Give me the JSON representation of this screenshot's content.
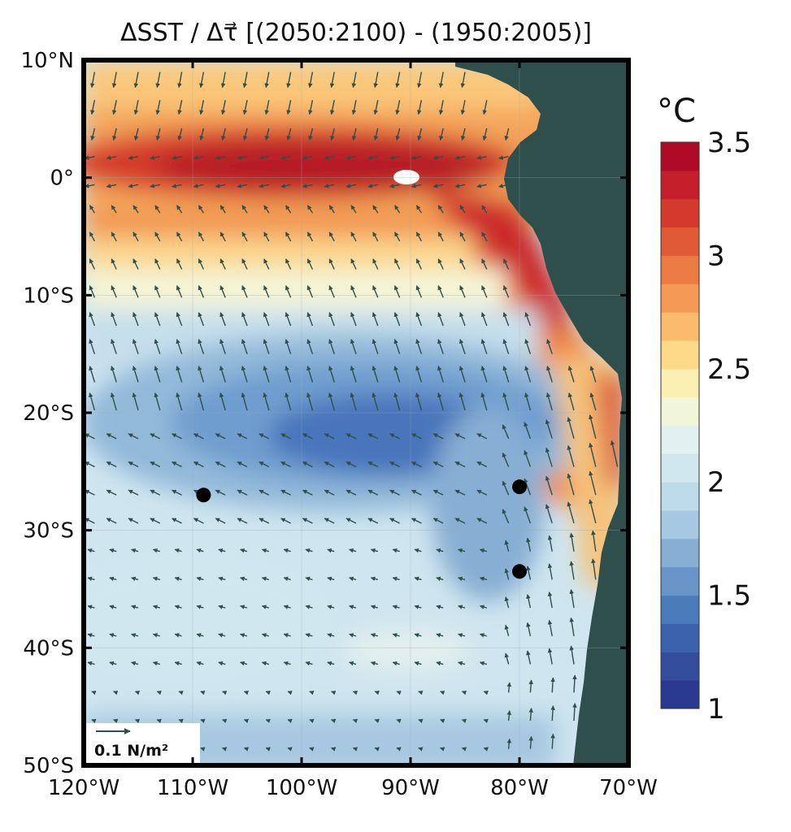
{
  "title": "ΔSST / Δτ⃗   [(2050:2100) - (1950:2005)]",
  "map": {
    "lon_range": [
      -120,
      -70
    ],
    "lat_range": [
      -50,
      10
    ],
    "x_ticks": [
      {
        "lon": -120,
        "label": "120°W"
      },
      {
        "lon": -110,
        "label": "110°W"
      },
      {
        "lon": -100,
        "label": "100°W"
      },
      {
        "lon": -90,
        "label": "90°W"
      },
      {
        "lon": -80,
        "label": "80°W"
      },
      {
        "lon": -70,
        "label": "70°W"
      }
    ],
    "y_ticks": [
      {
        "lat": 10,
        "label": "10°N"
      },
      {
        "lat": 0,
        "label": "0°"
      },
      {
        "lat": -10,
        "label": "10°S"
      },
      {
        "lat": -20,
        "label": "20°S"
      },
      {
        "lat": -30,
        "label": "30°S"
      },
      {
        "lat": -40,
        "label": "40°S"
      },
      {
        "lat": -50,
        "label": "50°S"
      }
    ],
    "land_color": "#2f4f4c",
    "arrow_color": "#2f4f4c",
    "grid": true,
    "markers": [
      {
        "lon": -109,
        "lat": -27
      },
      {
        "lon": -80,
        "lat": -26.3
      },
      {
        "lon": -80,
        "lat": -33.5
      }
    ],
    "reference_vector": {
      "label": "0.1 N/m²",
      "position": "bottom-left"
    }
  },
  "colorbar": {
    "unit": "°C",
    "range": [
      1,
      3.5
    ],
    "ticks": [
      {
        "value": 3.5,
        "label": "3.5"
      },
      {
        "value": 3,
        "label": "3"
      },
      {
        "value": 2.5,
        "label": "2.5"
      },
      {
        "value": 2,
        "label": "2"
      },
      {
        "value": 1.5,
        "label": "1.5"
      },
      {
        "value": 1,
        "label": "1"
      }
    ],
    "colors": [
      "#2b3a91",
      "#334d9c",
      "#3d62ad",
      "#4b7bbb",
      "#6894c7",
      "#87aed3",
      "#a6c8e0",
      "#bedbea",
      "#d0e7f0",
      "#e2f0ef",
      "#f1f6d9",
      "#fcefb2",
      "#fed989",
      "#fbbb6d",
      "#f49a56",
      "#eb7a44",
      "#e05a35",
      "#d43a2c",
      "#c41f2a",
      "#b00b26"
    ],
    "position": "right"
  }
}
